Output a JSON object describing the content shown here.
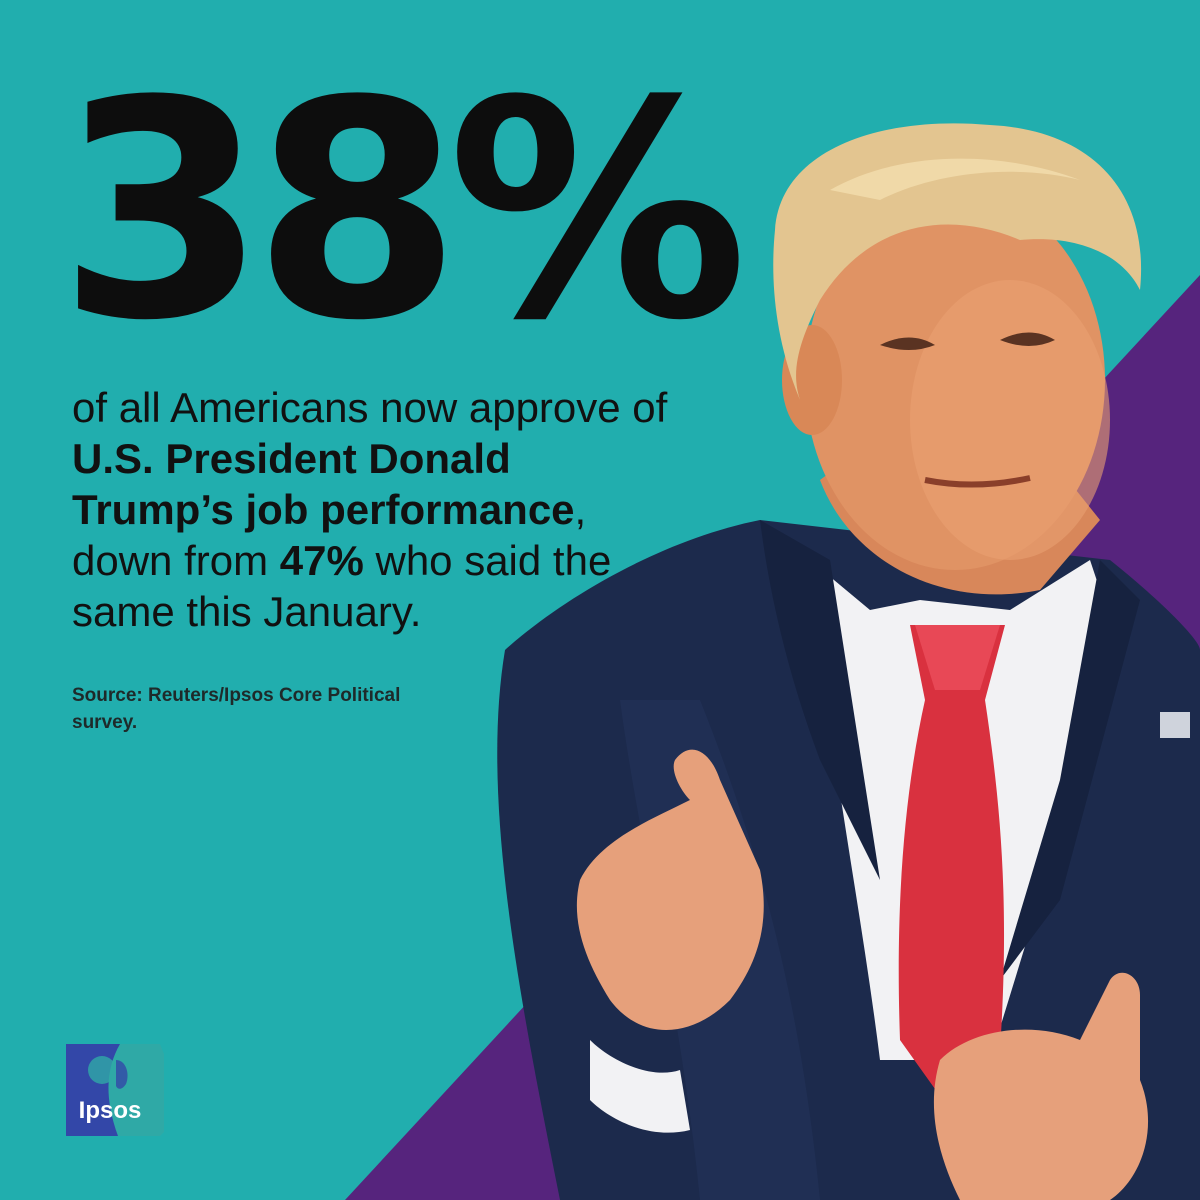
{
  "headline": {
    "value": "38%"
  },
  "statement": {
    "part1": "of all Americans now approve of",
    "bold1": "U.S. President Donald Trump’s job performance",
    "part2": ", down from",
    "bold2": "47%",
    "part3": "who said the same this January."
  },
  "source": {
    "text": "Source: Reuters/Ipsos Core Political survey."
  },
  "logo": {
    "brand_name": "Ipsos"
  },
  "colors": {
    "background": "#21aeae",
    "accent_triangle": "#56247d",
    "logo_blue": "#3347a8",
    "logo_teal": "#2fa9a6"
  },
  "photo": {
    "description_icon": "person-photo"
  }
}
